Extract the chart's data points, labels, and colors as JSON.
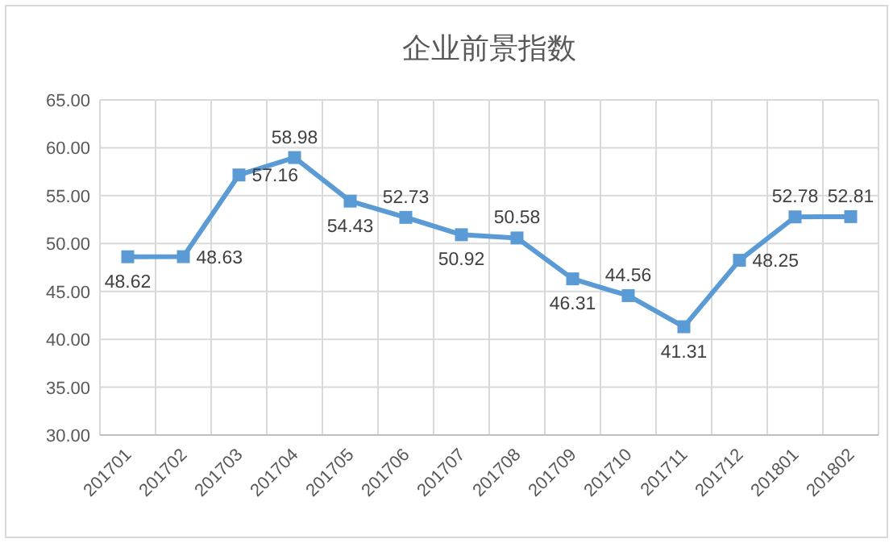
{
  "chart_data": {
    "type": "line",
    "title": "企业前景指数",
    "categories": [
      "201701",
      "201702",
      "201703",
      "201704",
      "201705",
      "201706",
      "201707",
      "201708",
      "201709",
      "201710",
      "201711",
      "201712",
      "201801",
      "201802"
    ],
    "values": [
      48.62,
      48.63,
      57.16,
      58.98,
      54.43,
      52.73,
      50.92,
      50.58,
      46.31,
      44.56,
      41.31,
      48.25,
      52.78,
      52.81
    ],
    "color": "#5b9bd5",
    "ylim": [
      30,
      65
    ],
    "yticks": [
      {
        "value": 30,
        "label": "30.00"
      },
      {
        "value": 35,
        "label": "35.00"
      },
      {
        "value": 40,
        "label": "40.00"
      },
      {
        "value": 45,
        "label": "45.00"
      },
      {
        "value": 50,
        "label": "50.00"
      },
      {
        "value": 55,
        "label": "55.00"
      },
      {
        "value": 60,
        "label": "60.00"
      },
      {
        "value": 65,
        "label": "65.00"
      }
    ],
    "grid": true,
    "marker": "square",
    "line_style": "solid",
    "data_labels": true
  }
}
